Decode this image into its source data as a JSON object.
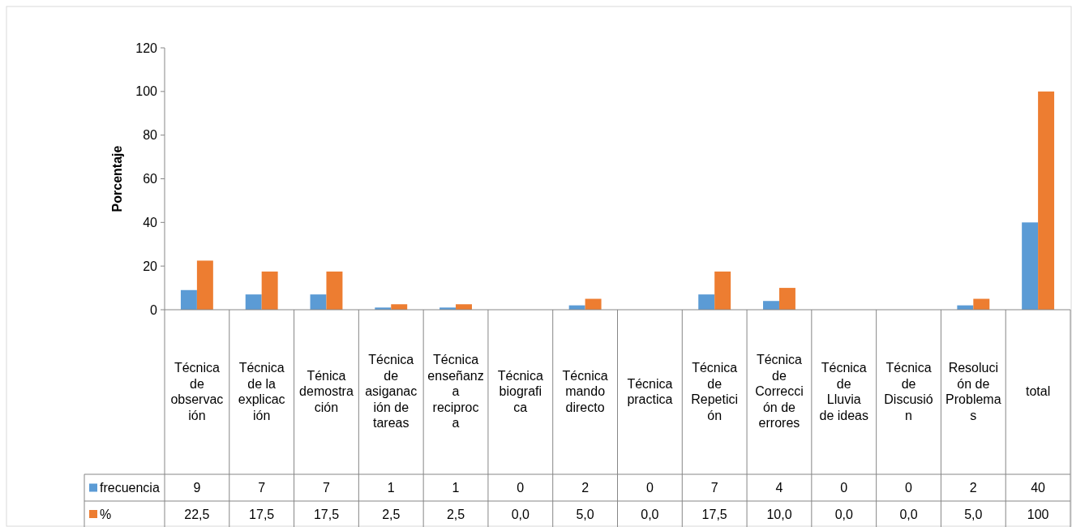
{
  "chart_data": {
    "type": "bar",
    "ylabel": "Porcentaje",
    "categories": [
      "Técnica de observación",
      "Técnica de la explicación",
      "Ténica demostración",
      "Técnica de asiganación de tareas",
      "Técnica enseñanza reciproca",
      "Técnica biografica",
      "Técnica mando directo",
      "Técnica practica",
      "Técnica de Repetición",
      "Técnica de Corrección de errores",
      "Técnica de Lluvia de ideas",
      "Técnica de Discusión",
      "Resolución de Problemas",
      "total"
    ],
    "series": [
      {
        "name": "frecuencia",
        "color": "#5b9bd5",
        "values": [
          9,
          7,
          7,
          1,
          1,
          0,
          2,
          0,
          7,
          4,
          0,
          0,
          2,
          40
        ],
        "value_labels": [
          "9",
          "7",
          "7",
          "1",
          "1",
          "0",
          "2",
          "0",
          "7",
          "4",
          "0",
          "0",
          "2",
          "40"
        ]
      },
      {
        "name": "%",
        "color": "#ed7d31",
        "values": [
          22.5,
          17.5,
          17.5,
          2.5,
          2.5,
          0,
          5,
          0,
          17.5,
          10,
          0,
          0,
          5,
          100
        ],
        "value_labels": [
          "22,5",
          "17,5",
          "17,5",
          "2,5",
          "2,5",
          "0,0",
          "5,0",
          "0,0",
          "17,5",
          "10,0",
          "0,0",
          "0,0",
          "5,0",
          "100"
        ]
      }
    ],
    "ylim": [
      0,
      120
    ],
    "yticks": [
      0,
      20,
      40,
      60,
      80,
      100,
      120
    ],
    "legend": "bottom"
  }
}
